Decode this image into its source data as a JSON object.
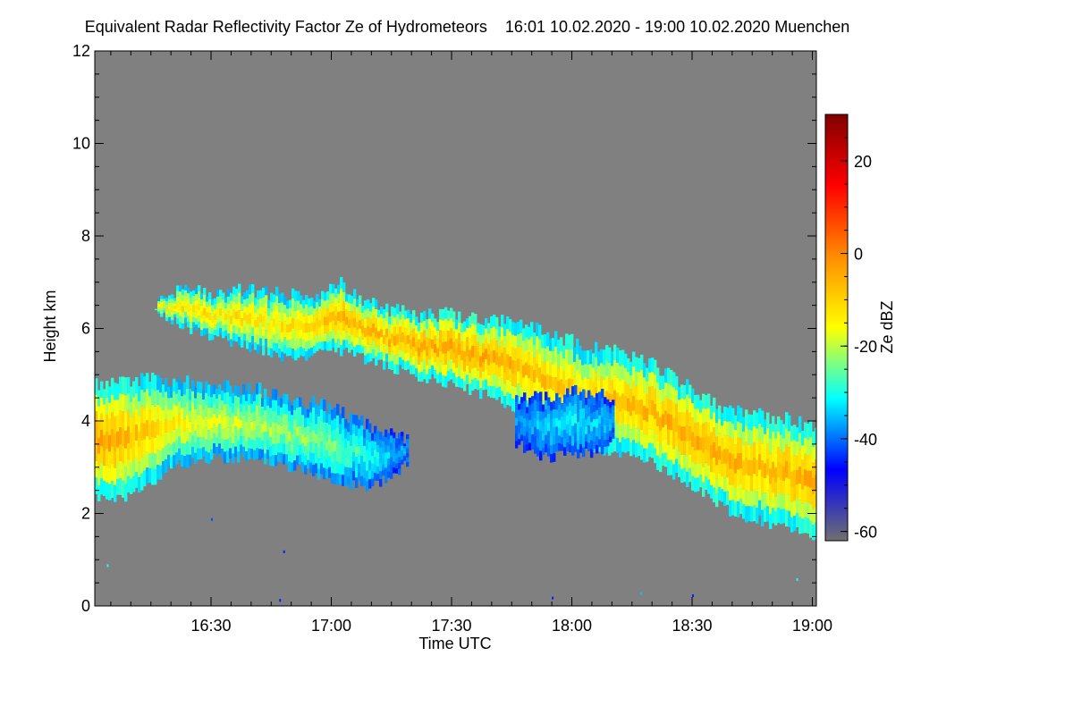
{
  "chart_data": {
    "type": "heatmap",
    "title": "Equivalent Radar Reflectivity Factor Ze of Hydrometeors",
    "time_range": "16:01 10.02.2020 - 19:00 10.02.2020",
    "location": "Muenchen",
    "xlabel": "Time UTC",
    "ylabel": "Height km",
    "x_range_min": [
      961,
      1141
    ],
    "x_ticks": [
      {
        "min": 990,
        "label": "16:30"
      },
      {
        "min": 1020,
        "label": "17:00"
      },
      {
        "min": 1050,
        "label": "17:30"
      },
      {
        "min": 1080,
        "label": "18:00"
      },
      {
        "min": 1110,
        "label": "18:30"
      },
      {
        "min": 1140,
        "label": "19:00"
      }
    ],
    "ylim": [
      0,
      12
    ],
    "y_ticks": [
      {
        "v": 0,
        "label": "0"
      },
      {
        "v": 2,
        "label": "2"
      },
      {
        "v": 4,
        "label": "4"
      },
      {
        "v": 6,
        "label": "6"
      },
      {
        "v": 8,
        "label": "8"
      },
      {
        "v": 10,
        "label": "10"
      },
      {
        "v": 12,
        "label": "12"
      }
    ],
    "background_color": "#808080",
    "colorbar": {
      "label": "Ze dBZ",
      "range": [
        -62,
        30
      ],
      "ticks": [
        {
          "v": 20,
          "label": "20"
        },
        {
          "v": 0,
          "label": "0"
        },
        {
          "v": -20,
          "label": "-20"
        },
        {
          "v": -40,
          "label": "-40"
        },
        {
          "v": -60,
          "label": "-60"
        }
      ],
      "stops": [
        "#707070",
        "#0000ff",
        "#00ffff",
        "#ffff00",
        "#ff8c00",
        "#ff0000",
        "#800000"
      ]
    },
    "layers": [
      {
        "name": "upper-cloud-layer",
        "time_min": [
          976,
          982,
          990,
          1000,
          1010,
          1018,
          1022,
          1030,
          1040,
          1050,
          1060,
          1070,
          1080,
          1090,
          1100,
          1110,
          1116,
          1120,
          1128,
          1135,
          1141
        ],
        "top_km": [
          6.6,
          6.8,
          6.8,
          6.8,
          6.7,
          6.7,
          7.0,
          6.5,
          6.3,
          6.3,
          6.2,
          6.0,
          5.7,
          5.5,
          5.2,
          4.7,
          4.4,
          4.2,
          4.1,
          4.0,
          3.9
        ],
        "base_km": [
          6.3,
          6.1,
          5.8,
          5.6,
          5.3,
          5.5,
          5.5,
          5.3,
          5.0,
          4.8,
          4.5,
          4.0,
          3.5,
          3.3,
          3.1,
          2.6,
          2.2,
          2.0,
          1.8,
          1.7,
          1.5
        ],
        "core_dbz": [
          -15,
          -12,
          -12,
          -12,
          -12,
          -8,
          -6,
          -7,
          -5,
          -4,
          -5,
          -8,
          -9,
          -8,
          -6,
          -5,
          -5,
          -6,
          -7,
          -6,
          -4
        ]
      },
      {
        "name": "lower-cloud-layer",
        "time_min": [
          961,
          965,
          970,
          975,
          980,
          990,
          1000,
          1010,
          1020,
          1026,
          1030,
          1034,
          1039
        ],
        "top_km": [
          4.8,
          4.9,
          4.9,
          4.9,
          4.9,
          4.8,
          4.7,
          4.5,
          4.3,
          4.0,
          3.9,
          3.7,
          3.6
        ],
        "base_km": [
          2.4,
          2.3,
          2.4,
          2.6,
          3.0,
          3.2,
          3.2,
          3.0,
          2.7,
          2.6,
          2.6,
          2.8,
          3.1
        ],
        "core_dbz": [
          -3,
          -4,
          -8,
          -10,
          -14,
          -18,
          -20,
          -22,
          -24,
          -28,
          -30,
          -34,
          -38
        ]
      },
      {
        "name": "mid-fragment-layer",
        "time_min": [
          1066,
          1070,
          1075,
          1080,
          1085,
          1090
        ],
        "top_km": [
          4.4,
          4.5,
          4.5,
          4.6,
          4.6,
          4.5
        ],
        "base_km": [
          3.5,
          3.3,
          3.2,
          3.3,
          3.3,
          3.5
        ],
        "core_dbz": [
          -38,
          -36,
          -34,
          -32,
          -34,
          -36
        ]
      }
    ]
  }
}
